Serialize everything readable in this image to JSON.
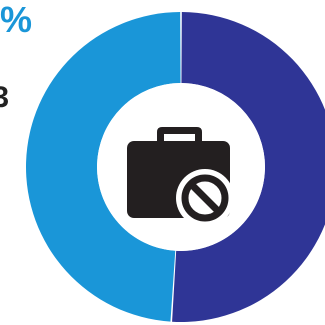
{
  "fragments": {
    "percent_sign": "%",
    "digit_fragment": "3"
  },
  "icon": "briefcase-with-prohibited-sign-icon",
  "colors": {
    "segment_right": "#2f3596",
    "segment_left": "#1a96d8",
    "hole": "#ffffff",
    "icon": "#231f20"
  },
  "chart_data": {
    "type": "pie",
    "donut": true,
    "title": "",
    "slices": [
      {
        "label": "",
        "value": 51,
        "color": "#2f3596"
      },
      {
        "label": "",
        "value": 49,
        "color": "#1a96d8"
      }
    ],
    "start_angle_deg": 0,
    "direction": "clockwise"
  }
}
